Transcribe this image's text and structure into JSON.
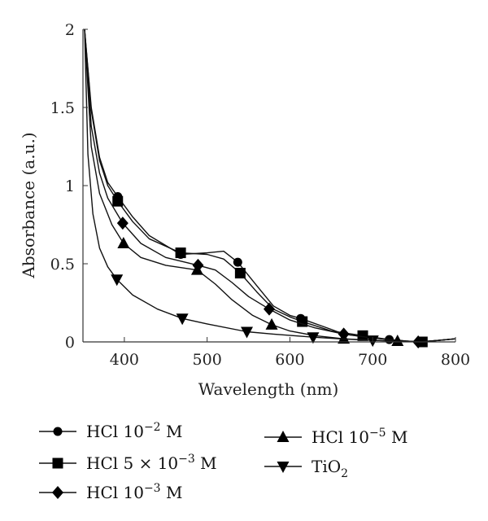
{
  "chart_data": {
    "type": "line",
    "xlabel": "Wavelength (nm)",
    "ylabel": "Absorbance (a.u.)",
    "xlim": [
      350,
      800
    ],
    "ylim": [
      0,
      2
    ],
    "x_ticks": [
      "400",
      "500",
      "600",
      "700",
      "800"
    ],
    "y_ticks": [
      "0",
      "0.5",
      "1",
      "1.5",
      "2"
    ],
    "grid": false,
    "legend_position": "bottom",
    "series": [
      {
        "name": "HCl 10⁻² M",
        "label_main": "HCl 10",
        "label_sup": "−2",
        "label_tail": " M",
        "marker": "circle",
        "x": [
          352,
          360,
          370,
          380,
          392,
          410,
          430,
          468,
          500,
          520,
          537,
          560,
          580,
          600,
          613,
          650,
          665,
          700,
          720,
          740,
          757,
          780,
          800
        ],
        "y": [
          2.0,
          1.5,
          1.18,
          1.02,
          0.93,
          0.8,
          0.68,
          0.56,
          0.57,
          0.58,
          0.51,
          0.36,
          0.23,
          0.17,
          0.15,
          0.08,
          0.05,
          0.025,
          0.015,
          0.005,
          0.0,
          0.01,
          0.02
        ]
      },
      {
        "name": "HCl 5 × 10⁻³ M",
        "label_main": "HCl 5 × 10",
        "label_sup": "−3",
        "label_tail": " M",
        "marker": "square",
        "x": [
          352,
          360,
          370,
          380,
          392,
          410,
          430,
          468,
          500,
          520,
          540,
          560,
          580,
          600,
          615,
          650,
          688,
          700,
          720,
          740,
          760,
          780,
          800
        ],
        "y": [
          2.0,
          1.48,
          1.16,
          1.0,
          0.9,
          0.77,
          0.66,
          0.57,
          0.56,
          0.53,
          0.44,
          0.32,
          0.21,
          0.16,
          0.13,
          0.07,
          0.04,
          0.03,
          0.015,
          0.005,
          0.0,
          0.01,
          0.02
        ]
      },
      {
        "name": "HCl 10⁻³ M",
        "label_main": "HCl 10",
        "label_sup": "−3",
        "label_tail": " M",
        "marker": "diamond",
        "x": [
          352,
          360,
          370,
          380,
          398,
          420,
          450,
          489,
          510,
          530,
          550,
          575,
          600,
          630,
          665,
          700,
          730,
          755,
          780,
          800
        ],
        "y": [
          2.0,
          1.38,
          1.08,
          0.92,
          0.76,
          0.63,
          0.54,
          0.49,
          0.46,
          0.38,
          0.29,
          0.21,
          0.14,
          0.09,
          0.05,
          0.025,
          0.01,
          0.0,
          0.01,
          0.02
        ]
      },
      {
        "name": "HCl 10⁻⁵ M",
        "label_main": "HCl 10",
        "label_sup": "−5",
        "label_tail": " M",
        "marker": "triangle-up",
        "x": [
          352,
          360,
          370,
          385,
          399,
          420,
          450,
          488,
          510,
          530,
          555,
          578,
          600,
          630,
          665,
          700,
          730,
          760,
          780,
          800
        ],
        "y": [
          2.0,
          1.25,
          0.95,
          0.75,
          0.63,
          0.54,
          0.49,
          0.46,
          0.37,
          0.27,
          0.17,
          0.11,
          0.07,
          0.04,
          0.02,
          0.01,
          0.005,
          0.0,
          0.01,
          0.02
        ]
      },
      {
        "name": "TiO₂",
        "label_main": "TiO",
        "label_sub": "2",
        "marker": "triangle-down",
        "x": [
          352,
          356,
          362,
          370,
          380,
          391,
          410,
          440,
          470,
          500,
          548,
          580,
          628,
          660,
          700,
          760,
          800
        ],
        "y": [
          2.0,
          1.2,
          0.82,
          0.6,
          0.48,
          0.4,
          0.3,
          0.21,
          0.15,
          0.115,
          0.065,
          0.05,
          0.03,
          0.02,
          0.01,
          0.0,
          0.02
        ]
      }
    ]
  }
}
